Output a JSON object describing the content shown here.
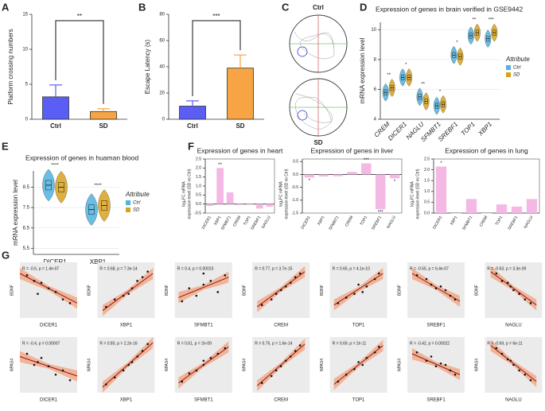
{
  "chart_data": [
    {
      "type": "bar",
      "panel": "A",
      "ylabel": "Platform crossing numbers",
      "categories": [
        "Ctrl",
        "SD"
      ],
      "values": [
        3.2,
        1.1
      ],
      "errors": [
        1.7,
        0.4
      ],
      "colors": [
        "#5b5ef5",
        "#f7a444"
      ],
      "ylim": [
        0,
        15
      ],
      "yticks": [
        0,
        5,
        10,
        15
      ],
      "significance": "**"
    },
    {
      "type": "bar",
      "panel": "B",
      "ylabel": "Escape Latency (s)",
      "categories": [
        "Ctrl",
        "SD"
      ],
      "values": [
        10,
        39
      ],
      "errors": [
        4,
        10
      ],
      "colors": [
        "#5b5ef5",
        "#f7a444"
      ],
      "ylim": [
        0,
        80
      ],
      "yticks": [
        0,
        20,
        40,
        60,
        80
      ],
      "significance": "***"
    },
    {
      "type": "trace",
      "panel": "C",
      "labels": [
        "Ctrl",
        "SD"
      ]
    },
    {
      "type": "violin",
      "panel": "D",
      "title": "Expression of genes in brain verified in GSE9442",
      "ylabel": "mRNA expression level",
      "categories": [
        "CREM",
        "DICER1",
        "NAGLU",
        "SFMBT1",
        "SREBF1",
        "TOP1",
        "XBP1"
      ],
      "series": [
        {
          "name": "Ctrl",
          "color": "#4fb3e0",
          "values": [
            5.8,
            6.8,
            5.5,
            4.9,
            8.3,
            9.6,
            9.4
          ]
        },
        {
          "name": "SD",
          "color": "#d9a21b",
          "values": [
            6.1,
            6.8,
            5.2,
            5.0,
            8.2,
            9.8,
            9.8
          ]
        }
      ],
      "significance": [
        "**",
        "*",
        "**",
        "*",
        "*",
        "**",
        "***"
      ],
      "legend_title": "Attribute",
      "ylim": [
        4,
        10.5
      ],
      "yticks": [
        4,
        6,
        8,
        10
      ]
    },
    {
      "type": "violin",
      "panel": "E",
      "title": "Expression of genes in huaman blood",
      "ylabel": "mRNA expression level",
      "categories": [
        "DICER1",
        "XBP1"
      ],
      "series": [
        {
          "name": "Ctrl",
          "color": "#4fb3e0",
          "values": [
            8.6,
            7.4
          ]
        },
        {
          "name": "SD",
          "color": "#d9a21b",
          "values": [
            8.5,
            7.6
          ]
        }
      ],
      "significance": [
        "****",
        "****"
      ],
      "legend_title": "Attribute",
      "ylim": [
        5.2,
        9.3
      ],
      "yticks": [
        5.5,
        6.5,
        7.5,
        8.5
      ]
    },
    {
      "type": "bar",
      "panel": "F",
      "title": "Expression of genes in heart",
      "ylabel": [
        "log₂FC mRNA",
        "expression level (SD vs Ctrl)"
      ],
      "categories": [
        "DICER1",
        "XBP1",
        "SFMBT1",
        "CREM",
        "TOP1",
        "SREBF1",
        "NAGLU"
      ],
      "values": [
        -0.1,
        2.0,
        0.65,
        -0.05,
        0,
        -0.25,
        -0.15
      ],
      "significance": [
        null,
        "**",
        null,
        null,
        null,
        null,
        null
      ],
      "color": "#f4b8e4",
      "ylim": [
        -0.5,
        2.5
      ],
      "yticks": [
        {
          "value": -0.5,
          "label": "-0.5"
        },
        {
          "value": 0,
          "label": "0.0"
        },
        0.5,
        {
          "value": 1,
          "label": "1.0"
        },
        1.5,
        {
          "value": 2,
          "label": "2.0"
        },
        2.5
      ]
    },
    {
      "type": "bar",
      "title": "Expression of genes in liver",
      "ylabel": [
        "log₂FC mRNA",
        "expression level (SD vs Ctrl)"
      ],
      "categories": [
        "DICER1",
        "XBP1",
        "SFMBT1",
        "CREM",
        "TOP1",
        "SREBF1",
        "NAGLU"
      ],
      "values": [
        -0.12,
        -0.08,
        -0.07,
        0.1,
        0.43,
        -1.35,
        -0.15
      ],
      "significance": [
        "*",
        null,
        null,
        null,
        "***",
        "***",
        "*"
      ],
      "color": "#f4b8e4",
      "ylim": [
        -1.5,
        0.6
      ],
      "yticks": [
        -1.5,
        {
          "value": -1,
          "label": "-1.0"
        },
        -0.5,
        {
          "value": 0,
          "label": "0.0"
        },
        0.5
      ]
    },
    {
      "type": "bar",
      "title": "Expression of genes in lung",
      "ylabel": [
        "log₂FC mRNA",
        "expression level (SD vs Ctrl)"
      ],
      "categories": [
        "DICER1",
        "XBP1",
        "SFMBT1",
        "CREM",
        "TOP1",
        "SREBF1",
        "NAGLU"
      ],
      "values": [
        2.15,
        0,
        0.65,
        0,
        0.4,
        0.3,
        0.65
      ],
      "significance": [
        "*",
        null,
        null,
        null,
        null,
        null,
        null
      ],
      "color": "#f4b8e4",
      "ylim": [
        0,
        2.5
      ],
      "yticks": [
        {
          "value": 0,
          "label": "0.0"
        },
        0.5,
        {
          "value": 1,
          "label": "1.0"
        },
        1.5,
        {
          "value": 2,
          "label": "2.0"
        },
        2.5
      ]
    },
    {
      "type": "scatter",
      "panel": "G",
      "xlabel": "DICER1",
      "ylabel": "BDNF",
      "annotation": "R = -0.6, p = 1.4e-07",
      "xlim": [
        6.3,
        7.1
      ],
      "ylim": [
        8,
        11
      ],
      "x": [
        6.4,
        6.5,
        6.6,
        6.7,
        6.8,
        6.9,
        7.0,
        6.55
      ],
      "y": [
        10.3,
        10.0,
        9.9,
        9.6,
        9.4,
        9.0,
        8.8,
        9.3
      ],
      "fit": {
        "x": [
          6.3,
          7.1
        ],
        "y": [
          10.4,
          8.8
        ]
      }
    },
    {
      "type": "scatter",
      "xlabel": "XBP1",
      "ylabel": "BDNF",
      "annotation": "R = 0.68, p = 7.3e-14",
      "xlim": [
        7,
        10.3
      ],
      "ylim": [
        8,
        11
      ],
      "x": [
        7.5,
        8,
        8.5,
        9,
        9.3,
        9.6,
        9.9,
        8.8
      ],
      "y": [
        8.6,
        9.0,
        9.2,
        9.6,
        10.0,
        10.2,
        10.5,
        9.3
      ],
      "fit": {
        "x": [
          7.3,
          10.2
        ],
        "y": [
          8.4,
          10.4
        ]
      }
    },
    {
      "type": "scatter",
      "xlabel": "SFMBT1",
      "ylabel": "BDNF",
      "annotation": "R = 0.4, p = 0.00023",
      "xlim": [
        4.6,
        5.4
      ],
      "ylim": [
        8,
        11
      ],
      "x": [
        4.7,
        4.8,
        4.9,
        5.0,
        5.1,
        5.2,
        5.3,
        5.0
      ],
      "y": [
        8.9,
        9.6,
        9.2,
        9.8,
        10.0,
        9.4,
        10.3,
        10.4
      ],
      "fit": {
        "x": [
          4.65,
          5.35
        ],
        "y": [
          9.1,
          10.2
        ]
      }
    },
    {
      "type": "scatter",
      "xlabel": "CREM",
      "ylabel": "BDNF",
      "annotation": "R = 0.77, p = 3.7e-15",
      "xlim": [
        5.2,
        6.4
      ],
      "ylim": [
        8,
        11
      ],
      "x": [
        5.4,
        5.6,
        5.7,
        5.8,
        5.9,
        6.0,
        6.1,
        6.2
      ],
      "y": [
        8.7,
        9.0,
        9.3,
        9.5,
        9.7,
        9.9,
        10.2,
        10.4
      ],
      "fit": {
        "x": [
          5.3,
          6.3
        ],
        "y": [
          8.6,
          10.5
        ]
      }
    },
    {
      "type": "scatter",
      "xlabel": "TOP1",
      "ylabel": "BDNF",
      "annotation": "R = 0.65, p = 4.1e-10",
      "xlim": [
        8.4,
        9.8
      ],
      "ylim": [
        8,
        11
      ],
      "x": [
        8.6,
        8.8,
        9.0,
        9.1,
        9.3,
        9.5,
        9.6,
        9.2
      ],
      "y": [
        8.8,
        9.1,
        9.3,
        9.8,
        9.7,
        10.1,
        10.4,
        9.4
      ],
      "fit": {
        "x": [
          8.5,
          9.7
        ],
        "y": [
          8.7,
          10.4
        ]
      }
    },
    {
      "type": "scatter",
      "xlabel": "SREBF1",
      "ylabel": "BDNF",
      "annotation": "R = -0.55, p = 6.4e-07",
      "xlim": [
        7.6,
        8.8
      ],
      "ylim": [
        8,
        11
      ],
      "x": [
        7.8,
        8.0,
        8.1,
        8.2,
        8.3,
        8.5,
        8.6,
        8.4
      ],
      "y": [
        10.3,
        10.1,
        9.8,
        9.6,
        9.7,
        9.2,
        9.0,
        9.5
      ],
      "fit": {
        "x": [
          7.7,
          8.7
        ],
        "y": [
          10.4,
          8.9
        ]
      }
    },
    {
      "type": "scatter",
      "xlabel": "NAGLU",
      "ylabel": "BDNF",
      "annotation": "R = -0.63, p = 3.3e-09",
      "xlim": [
        4.8,
        5.8
      ],
      "ylim": [
        8,
        11
      ],
      "x": [
        5.0,
        5.1,
        5.2,
        5.3,
        5.4,
        5.5,
        5.6,
        5.25
      ],
      "y": [
        10.4,
        10.0,
        9.9,
        9.5,
        9.3,
        9.0,
        8.8,
        9.7
      ],
      "fit": {
        "x": [
          4.9,
          5.7
        ],
        "y": [
          10.5,
          8.7
        ]
      }
    },
    {
      "type": "scatter",
      "xlabel": "DICER1",
      "ylabel": "NPAS4",
      "annotation": "R = -0.4, p = 0.00007",
      "xlim": [
        6.3,
        7.1
      ],
      "ylim": [
        5,
        9
      ],
      "x": [
        6.4,
        6.5,
        6.6,
        6.7,
        6.8,
        6.9,
        7.0,
        6.55
      ],
      "y": [
        7.8,
        7.0,
        7.5,
        6.9,
        6.3,
        6.6,
        5.9,
        7.2
      ],
      "fit": {
        "x": [
          6.3,
          7.1
        ],
        "y": [
          7.6,
          6.2
        ]
      }
    },
    {
      "type": "scatter",
      "xlabel": "XBP1",
      "ylabel": "NPAS4",
      "annotation": "R = 0.83, p = 2.2e-16",
      "xlim": [
        7,
        10.3
      ],
      "ylim": [
        5,
        9
      ],
      "x": [
        7.5,
        8,
        8.5,
        9,
        9.3,
        9.6,
        9.9,
        8.8
      ],
      "y": [
        5.6,
        6.1,
        6.6,
        7.2,
        7.6,
        8.0,
        8.5,
        7.0
      ],
      "fit": {
        "x": [
          7.3,
          10.2
        ],
        "y": [
          5.4,
          8.6
        ]
      }
    },
    {
      "type": "scatter",
      "xlabel": "SFMBT1",
      "ylabel": "NPAS4",
      "annotation": "R = 0.61, p = 2e-09",
      "xlim": [
        4.6,
        5.4
      ],
      "ylim": [
        5,
        9
      ],
      "x": [
        4.7,
        4.8,
        4.9,
        5.0,
        5.1,
        5.2,
        5.3,
        5.0
      ],
      "y": [
        5.8,
        6.4,
        6.6,
        7.0,
        7.5,
        7.8,
        8.2,
        7.3
      ],
      "fit": {
        "x": [
          4.65,
          5.35
        ],
        "y": [
          5.7,
          8.3
        ]
      }
    },
    {
      "type": "scatter",
      "xlabel": "CREM",
      "ylabel": "NPAS4",
      "annotation": "R = 0.76, p = 1.6e-14",
      "xlim": [
        5.2,
        6.4
      ],
      "ylim": [
        5,
        9
      ],
      "x": [
        5.4,
        5.6,
        5.7,
        5.8,
        5.9,
        6.0,
        6.1,
        6.2
      ],
      "y": [
        5.7,
        6.2,
        6.6,
        6.9,
        7.3,
        7.6,
        8.0,
        8.4
      ],
      "fit": {
        "x": [
          5.3,
          6.3
        ],
        "y": [
          5.5,
          8.5
        ]
      }
    },
    {
      "type": "scatter",
      "xlabel": "TOP1",
      "ylabel": "NPAS4",
      "annotation": "R = 0.69, p = 2e-11",
      "xlim": [
        8.4,
        9.8
      ],
      "ylim": [
        5,
        9
      ],
      "x": [
        8.6,
        8.8,
        9.0,
        9.1,
        9.3,
        9.5,
        9.6,
        9.2
      ],
      "y": [
        5.8,
        6.3,
        6.7,
        7.2,
        7.5,
        7.9,
        8.3,
        7.0
      ],
      "fit": {
        "x": [
          8.5,
          9.7
        ],
        "y": [
          5.6,
          8.4
        ]
      }
    },
    {
      "type": "scatter",
      "xlabel": "SREBF1",
      "ylabel": "NPAS4",
      "annotation": "R = -0.42, p = 0.00022",
      "xlim": [
        7.6,
        8.8
      ],
      "ylim": [
        5,
        9
      ],
      "x": [
        7.8,
        8.0,
        8.1,
        8.2,
        8.3,
        8.5,
        8.6,
        8.4
      ],
      "y": [
        7.9,
        7.3,
        7.6,
        6.9,
        7.1,
        6.6,
        6.3,
        7.0
      ],
      "fit": {
        "x": [
          7.7,
          8.7
        ],
        "y": [
          7.8,
          6.3
        ]
      }
    },
    {
      "type": "scatter",
      "xlabel": "NAGLU",
      "ylabel": "NPAS4",
      "annotation": "R = -0.69, p = 6e-11",
      "xlim": [
        4.8,
        5.8
      ],
      "ylim": [
        5,
        9
      ],
      "x": [
        5.0,
        5.1,
        5.2,
        5.3,
        5.4,
        5.5,
        5.6,
        5.25
      ],
      "y": [
        8.2,
        7.8,
        7.4,
        7.0,
        6.6,
        6.3,
        5.9,
        7.3
      ],
      "fit": {
        "x": [
          4.9,
          5.7
        ],
        "y": [
          8.4,
          5.8
        ]
      }
    }
  ]
}
